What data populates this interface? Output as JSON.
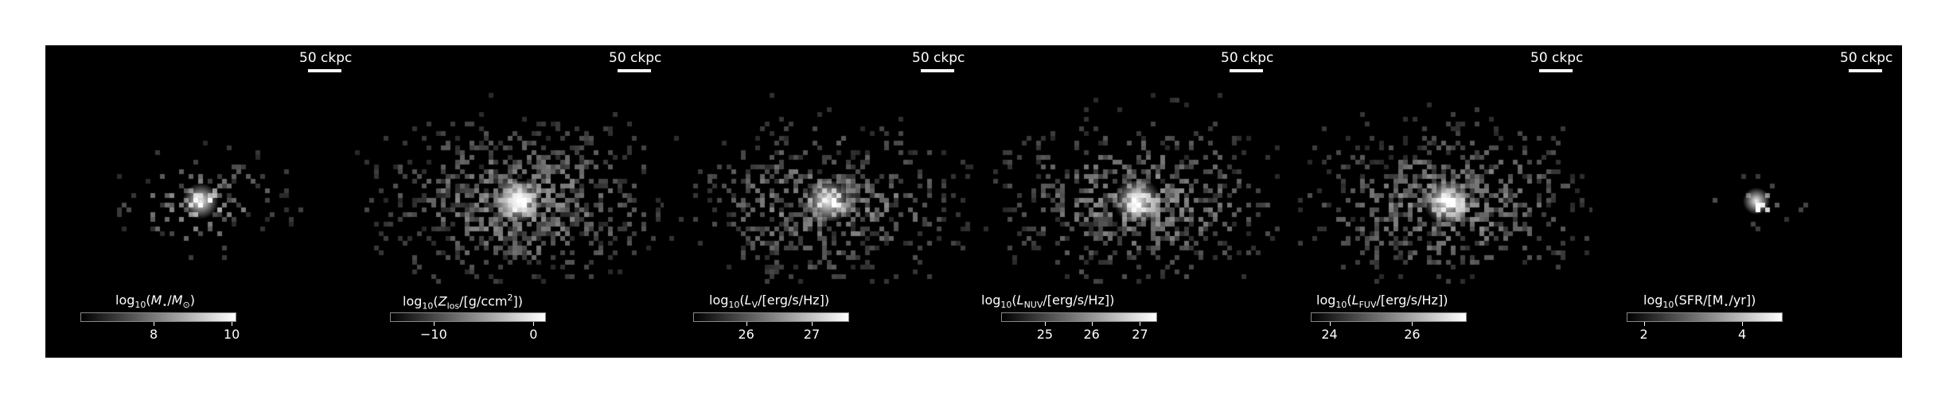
{
  "scale_label": "50 ckpc",
  "panels": [
    {
      "name": "stellar-mass",
      "label_parts": [
        "log",
        "10",
        "(",
        "M",
        "⋆",
        "/",
        "M",
        "⊙",
        ")"
      ],
      "label_text": "log10(M⋆/M⊙)",
      "ticks": [
        "8",
        "10"
      ],
      "tick_fracs": [
        0.47,
        0.97
      ],
      "spread": 0.55,
      "core": 1.0,
      "density": 0.35
    },
    {
      "name": "metal-column",
      "label_text": "log10(Zlos/[g/ccm2])",
      "ticks": [
        "−10",
        "0"
      ],
      "tick_fracs": [
        0.28,
        0.92
      ],
      "spread": 1.0,
      "core": 0.75,
      "density": 0.8
    },
    {
      "name": "v-band-luminosity",
      "label_text": "log10(LV/[erg/s/Hz])",
      "ticks": [
        "26",
        "27"
      ],
      "tick_fracs": [
        0.34,
        0.76
      ],
      "spread": 0.95,
      "core": 0.9,
      "density": 0.6
    },
    {
      "name": "nuv-luminosity",
      "label_text": "log10(LNUV/[erg/s/Hz])",
      "ticks": [
        "25",
        "26",
        "27"
      ],
      "tick_fracs": [
        0.28,
        0.58,
        0.89
      ],
      "spread": 1.0,
      "core": 0.85,
      "density": 0.65
    },
    {
      "name": "fuv-luminosity",
      "label_text": "log10(LFUV/[erg/s/Hz])",
      "ticks": [
        "24",
        "26"
      ],
      "tick_fracs": [
        0.12,
        0.65
      ],
      "spread": 1.0,
      "core": 0.85,
      "density": 0.65
    },
    {
      "name": "star-formation-rate",
      "label_text": "log10(SFR/[M⋆/yr])",
      "ticks": [
        "2",
        "4"
      ],
      "tick_fracs": [
        0.11,
        0.74
      ],
      "spread": 0.2,
      "core": 1.0,
      "density": 0.15
    }
  ]
}
